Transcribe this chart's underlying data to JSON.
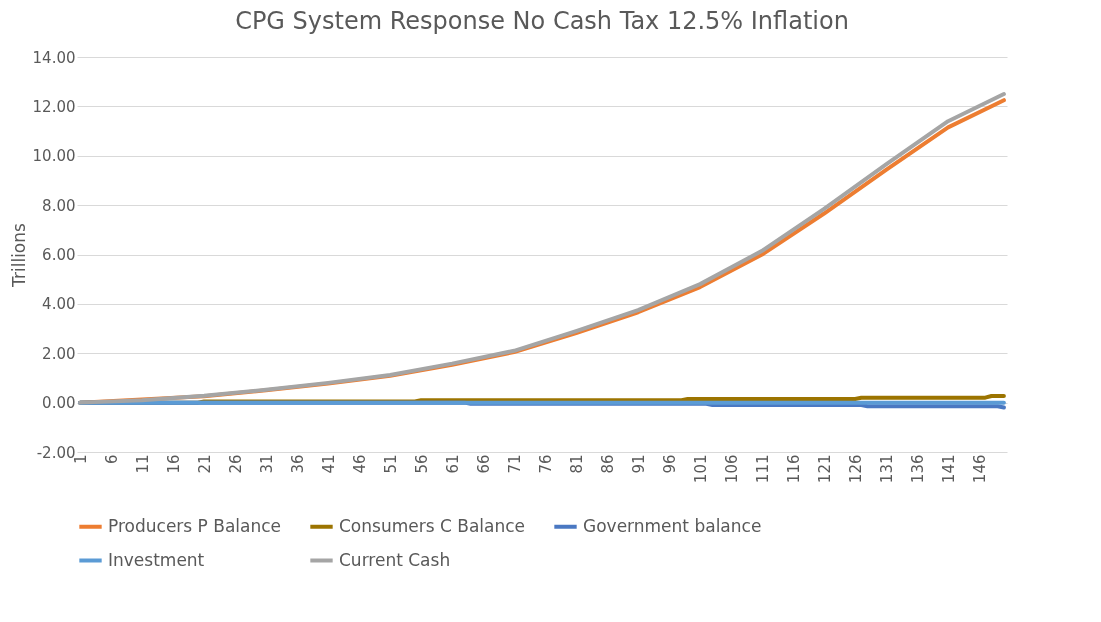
{
  "chart_data": {
    "type": "line",
    "title": "CPG System Response No Cash Tax 12.5% Inflation",
    "ylabel": "Trillions",
    "xlim": [
      0.5,
      150.5
    ],
    "xticks": [
      1,
      6,
      11,
      16,
      21,
      26,
      31,
      36,
      41,
      46,
      51,
      56,
      61,
      66,
      71,
      76,
      81,
      86,
      91,
      96,
      101,
      106,
      111,
      116,
      121,
      126,
      131,
      136,
      141,
      146
    ],
    "ylim": [
      -2,
      14
    ],
    "yticks": [
      {
        "value": -2,
        "label": "-2.00"
      },
      {
        "value": 0,
        "label": "0.00"
      },
      {
        "value": 2,
        "label": "2.00"
      },
      {
        "value": 4,
        "label": "4.00"
      },
      {
        "value": 6,
        "label": "6.00"
      },
      {
        "value": 8,
        "label": "8.00"
      },
      {
        "value": 10,
        "label": "10.00"
      },
      {
        "value": 12,
        "label": "12.00"
      },
      {
        "value": 14,
        "label": "14.00"
      }
    ],
    "grid": "y",
    "legend": "bottom",
    "marker": "none",
    "line_style": "solid",
    "series": [
      {
        "name": "Producers P Balance",
        "color": "#ed7d31",
        "x": [
          1,
          21,
          31,
          41,
          51,
          61,
          71,
          81,
          91,
          101,
          111,
          121,
          131,
          141,
          150
        ],
        "values": [
          0,
          0.26,
          0.5,
          0.77,
          1.09,
          1.53,
          2.05,
          2.82,
          3.66,
          4.68,
          6.0,
          7.66,
          9.43,
          11.15,
          12.25
        ]
      },
      {
        "name": "Consumers C Balance",
        "color": "#9c7400",
        "x": [
          1,
          20,
          21,
          55,
          56,
          98,
          99,
          126,
          127,
          147,
          148,
          150
        ],
        "values": [
          0,
          0,
          0.05,
          0.05,
          0.1,
          0.1,
          0.15,
          0.15,
          0.2,
          0.2,
          0.27,
          0.27
        ]
      },
      {
        "name": "Government balance",
        "color": "#4a78c2",
        "x": [
          1,
          63,
          64,
          102,
          103,
          127,
          128,
          149,
          150
        ],
        "values": [
          0,
          0,
          -0.05,
          -0.05,
          -0.1,
          -0.1,
          -0.15,
          -0.15,
          -0.2
        ]
      },
      {
        "name": "Investment",
        "color": "#5b9bd5",
        "x": [
          1,
          150
        ],
        "values": [
          0,
          0
        ]
      },
      {
        "name": "Current Cash",
        "color": "#a5a5a5",
        "x": [
          1,
          11,
          21,
          31,
          41,
          51,
          61,
          71,
          81,
          91,
          101,
          111,
          121,
          131,
          141,
          150
        ],
        "values": [
          0,
          0.1,
          0.28,
          0.52,
          0.8,
          1.12,
          1.58,
          2.1,
          2.9,
          3.75,
          4.8,
          6.15,
          7.85,
          9.65,
          11.4,
          12.5
        ]
      }
    ]
  }
}
